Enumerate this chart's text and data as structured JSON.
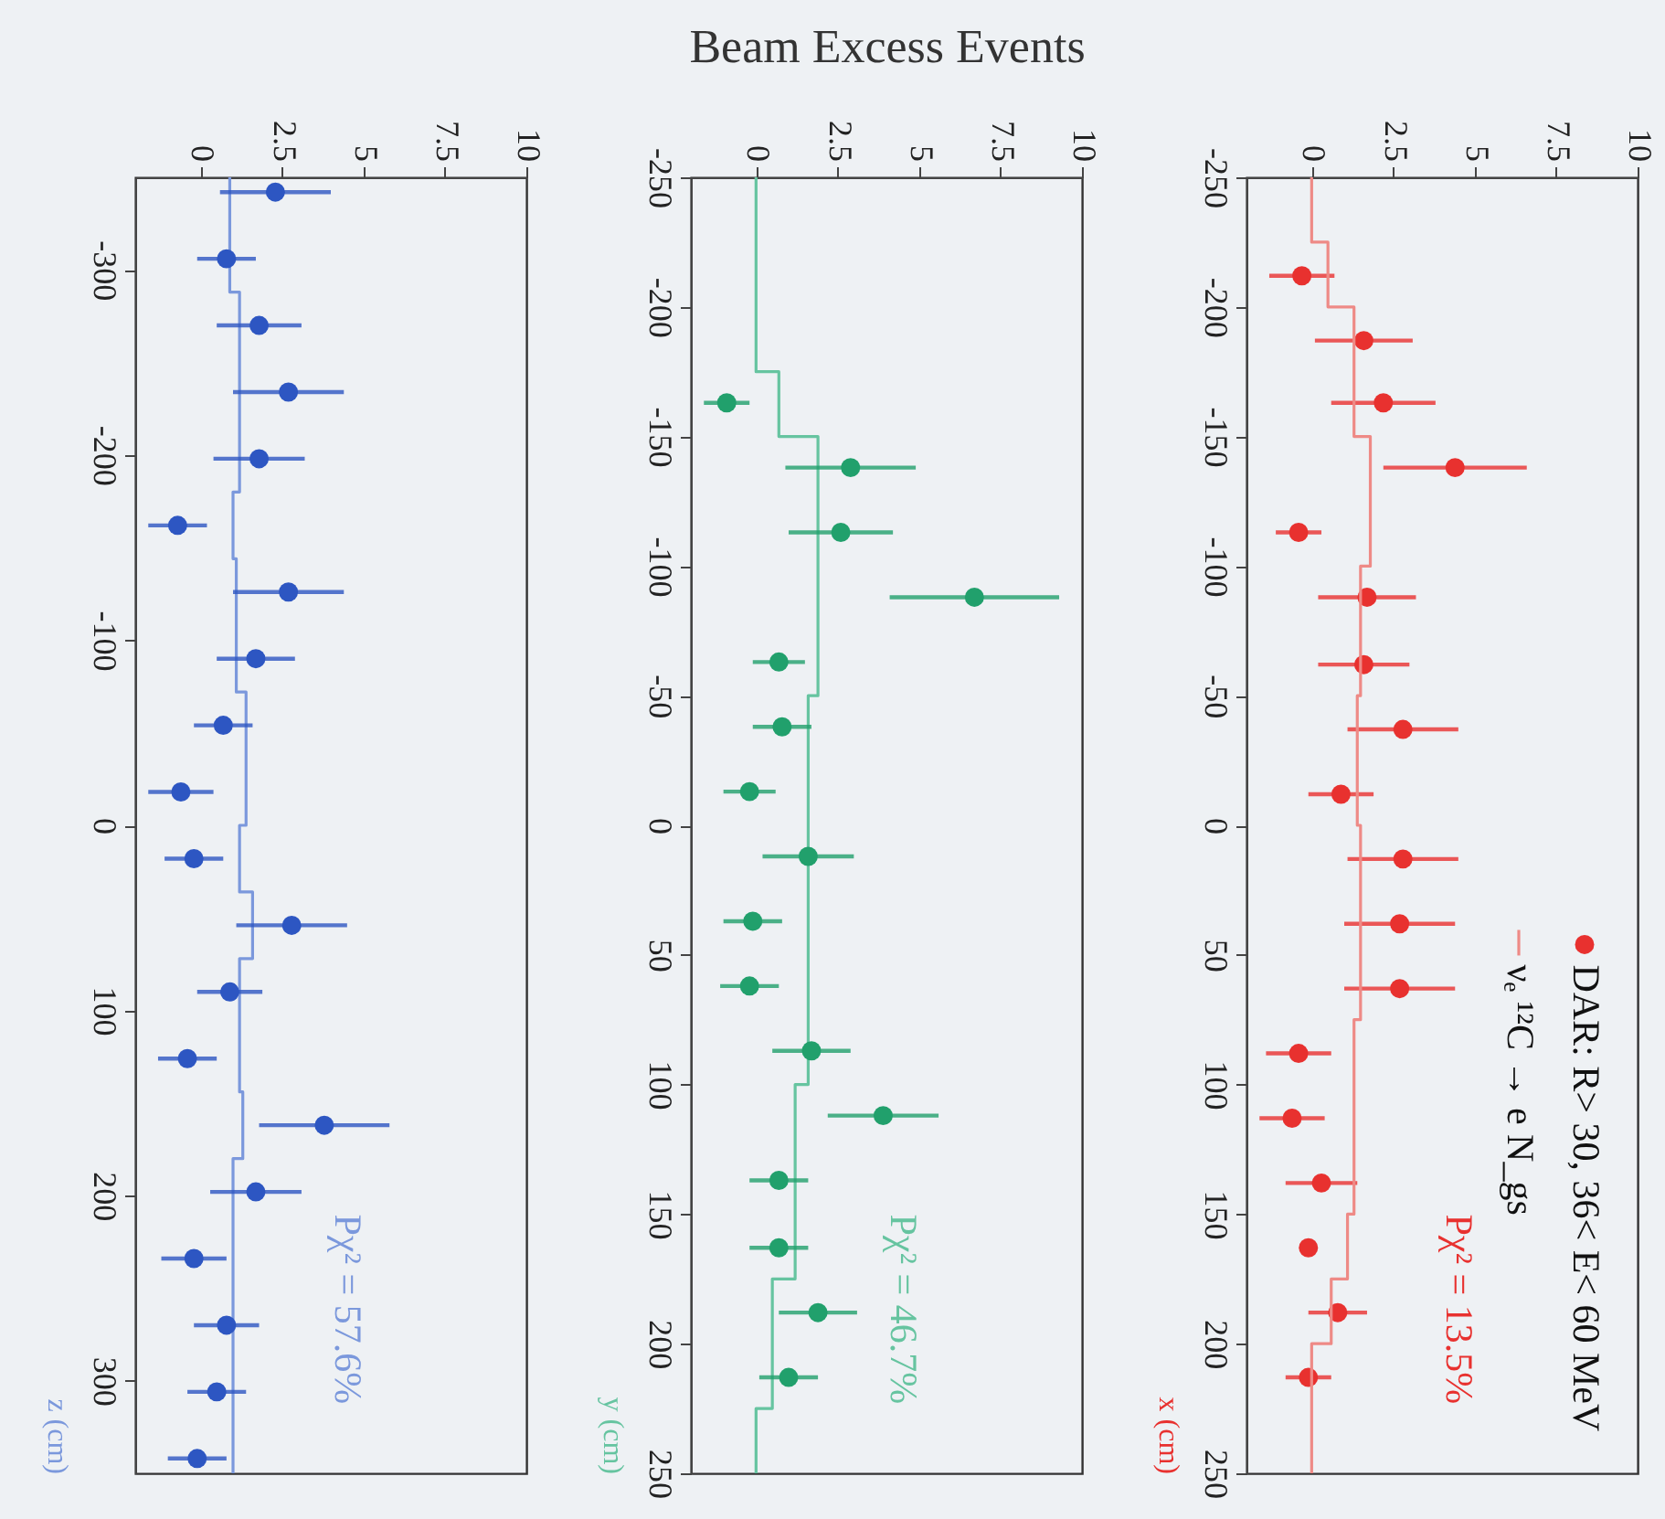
{
  "chart_data": [
    {
      "type": "scatter",
      "ylabel": "z (cm)",
      "xlim": [
        -2,
        10
      ],
      "xticks": [
        0,
        2.5,
        5,
        7.5,
        10
      ],
      "ylim": [
        350,
        -350
      ],
      "yticks": [
        -300,
        -200,
        -100,
        0,
        100,
        200,
        300
      ],
      "series": [
        {
          "type": "line",
          "color": "#7b98dc",
          "x": [
            0.9,
            0.9,
            1.2,
            1.2,
            1.0,
            1.0,
            1.1,
            1.1,
            1.4,
            1.4,
            1.2,
            1.2,
            1.6,
            1.6,
            1.2,
            1.2,
            1.3,
            1.3,
            1.0,
            1.0
          ],
          "values": [
            -350,
            -288,
            -288,
            -180,
            -180,
            -144,
            -144,
            -72,
            -72,
            0,
            0,
            36,
            36,
            72,
            72,
            144,
            144,
            180,
            180,
            350
          ]
        },
        {
          "marker": "circle",
          "color": "#2d56c2",
          "x": [
            2.3,
            0.8,
            1.8,
            2.7,
            1.8,
            -0.7,
            2.7,
            1.7,
            0.7,
            -0.6,
            -0.2,
            2.8,
            0.9,
            -0.4,
            3.8,
            1.7,
            -0.2,
            0.8,
            0.5,
            -0.1
          ],
          "xerrors": [
            1.7,
            0.9,
            1.3,
            1.7,
            1.4,
            0.9,
            1.7,
            1.2,
            0.9,
            1.0,
            0.9,
            1.7,
            1.0,
            0.9,
            2.0,
            1.4,
            1.0,
            1.0,
            0.9,
            0.9
          ],
          "values": [
            -342,
            -306,
            -270,
            -234,
            -198,
            -162,
            -126,
            -90,
            -54,
            -18,
            18,
            54,
            90,
            126,
            162,
            198,
            234,
            270,
            306,
            342
          ]
        }
      ],
      "annotations": [
        "Pχ² = 57.6%"
      ]
    },
    {
      "type": "scatter",
      "xlabel": "Beam Excess Events",
      "ylabel": "y (cm)",
      "xlim": [
        -2,
        10
      ],
      "xticks": [
        0,
        2.5,
        5,
        7.5,
        10
      ],
      "ylim": [
        250,
        -250
      ],
      "yticks": [
        -250,
        -200,
        -150,
        -100,
        -50,
        0,
        50,
        100,
        150,
        200,
        250
      ],
      "series": [
        {
          "type": "line",
          "color": "#66c4a0",
          "x": [
            0.0,
            0.0,
            0.7,
            0.7,
            1.9,
            1.9,
            1.6,
            1.6,
            1.2,
            1.2,
            0.5,
            0.5,
            0.0,
            0.0
          ],
          "values": [
            -250,
            -175,
            -175,
            -150,
            -150,
            -50,
            -50,
            100,
            100,
            175,
            175,
            225,
            225,
            250
          ]
        },
        {
          "marker": "circle",
          "color": "#21a06c",
          "x": [
            -0.9,
            2.9,
            2.6,
            6.7,
            0.7,
            0.8,
            -0.2,
            1.6,
            -0.1,
            -0.2,
            1.7,
            3.9,
            0.7,
            0.7,
            1.9,
            1.0
          ],
          "xerrors": [
            0.7,
            2.0,
            1.6,
            2.6,
            0.8,
            0.9,
            0.8,
            1.4,
            0.9,
            0.9,
            1.2,
            1.7,
            0.9,
            0.9,
            1.2,
            0.9
          ],
          "values": [
            -163,
            -138,
            -113,
            -88,
            -63,
            -38,
            -13,
            12,
            37,
            62,
            87,
            112,
            137,
            163,
            188,
            213
          ]
        }
      ],
      "annotations": [
        "Pχ² = 46.7%"
      ]
    },
    {
      "type": "scatter",
      "ylabel": "x (cm)",
      "xlim": [
        -2,
        10
      ],
      "xticks": [
        0,
        2.5,
        5,
        7.5,
        10
      ],
      "ylim": [
        250,
        -250
      ],
      "yticks": [
        -250,
        -200,
        -150,
        -100,
        -50,
        0,
        50,
        100,
        150,
        200,
        250
      ],
      "legend": "bottom right",
      "series": [
        {
          "marker": "circle",
          "name": "DAR: R> 30, 36< E< 60 MeV",
          "color": "#e8312f",
          "x": [
            -0.3,
            1.6,
            2.2,
            4.4,
            -0.4,
            1.7,
            1.6,
            2.8,
            0.9,
            2.8,
            2.7,
            2.7,
            -0.4,
            -0.6,
            0.3,
            -0.1,
            0.8,
            -0.1
          ],
          "xerrors": [
            1.0,
            1.5,
            1.6,
            2.2,
            0.7,
            1.5,
            1.4,
            1.7,
            1.0,
            1.7,
            1.7,
            1.7,
            1.0,
            1.0,
            1.1,
            null,
            0.9,
            0.7
          ],
          "values": [
            -212,
            -187,
            -163,
            -138,
            -113,
            -88,
            -62,
            -37,
            -12,
            13,
            38,
            63,
            88,
            113,
            138,
            163,
            188,
            213
          ]
        },
        {
          "type": "line",
          "name": "νₑ ¹²C → e N_gs",
          "color": "#ee8a86",
          "x": [
            0.0,
            0.0,
            0.5,
            0.5,
            1.3,
            1.3,
            1.8,
            1.8,
            1.5,
            1.5,
            1.4,
            1.4,
            1.5,
            1.5,
            1.3,
            1.3,
            1.1,
            1.1,
            0.6,
            0.6,
            0.0,
            0.0
          ],
          "values": [
            -250,
            -225,
            -225,
            -200,
            -200,
            -150,
            -150,
            -100,
            -100,
            -50,
            -50,
            0,
            0,
            75,
            75,
            150,
            150,
            175,
            175,
            200,
            200,
            250
          ]
        }
      ],
      "annotations": [
        "Pχ² = 13.5%"
      ]
    }
  ]
}
